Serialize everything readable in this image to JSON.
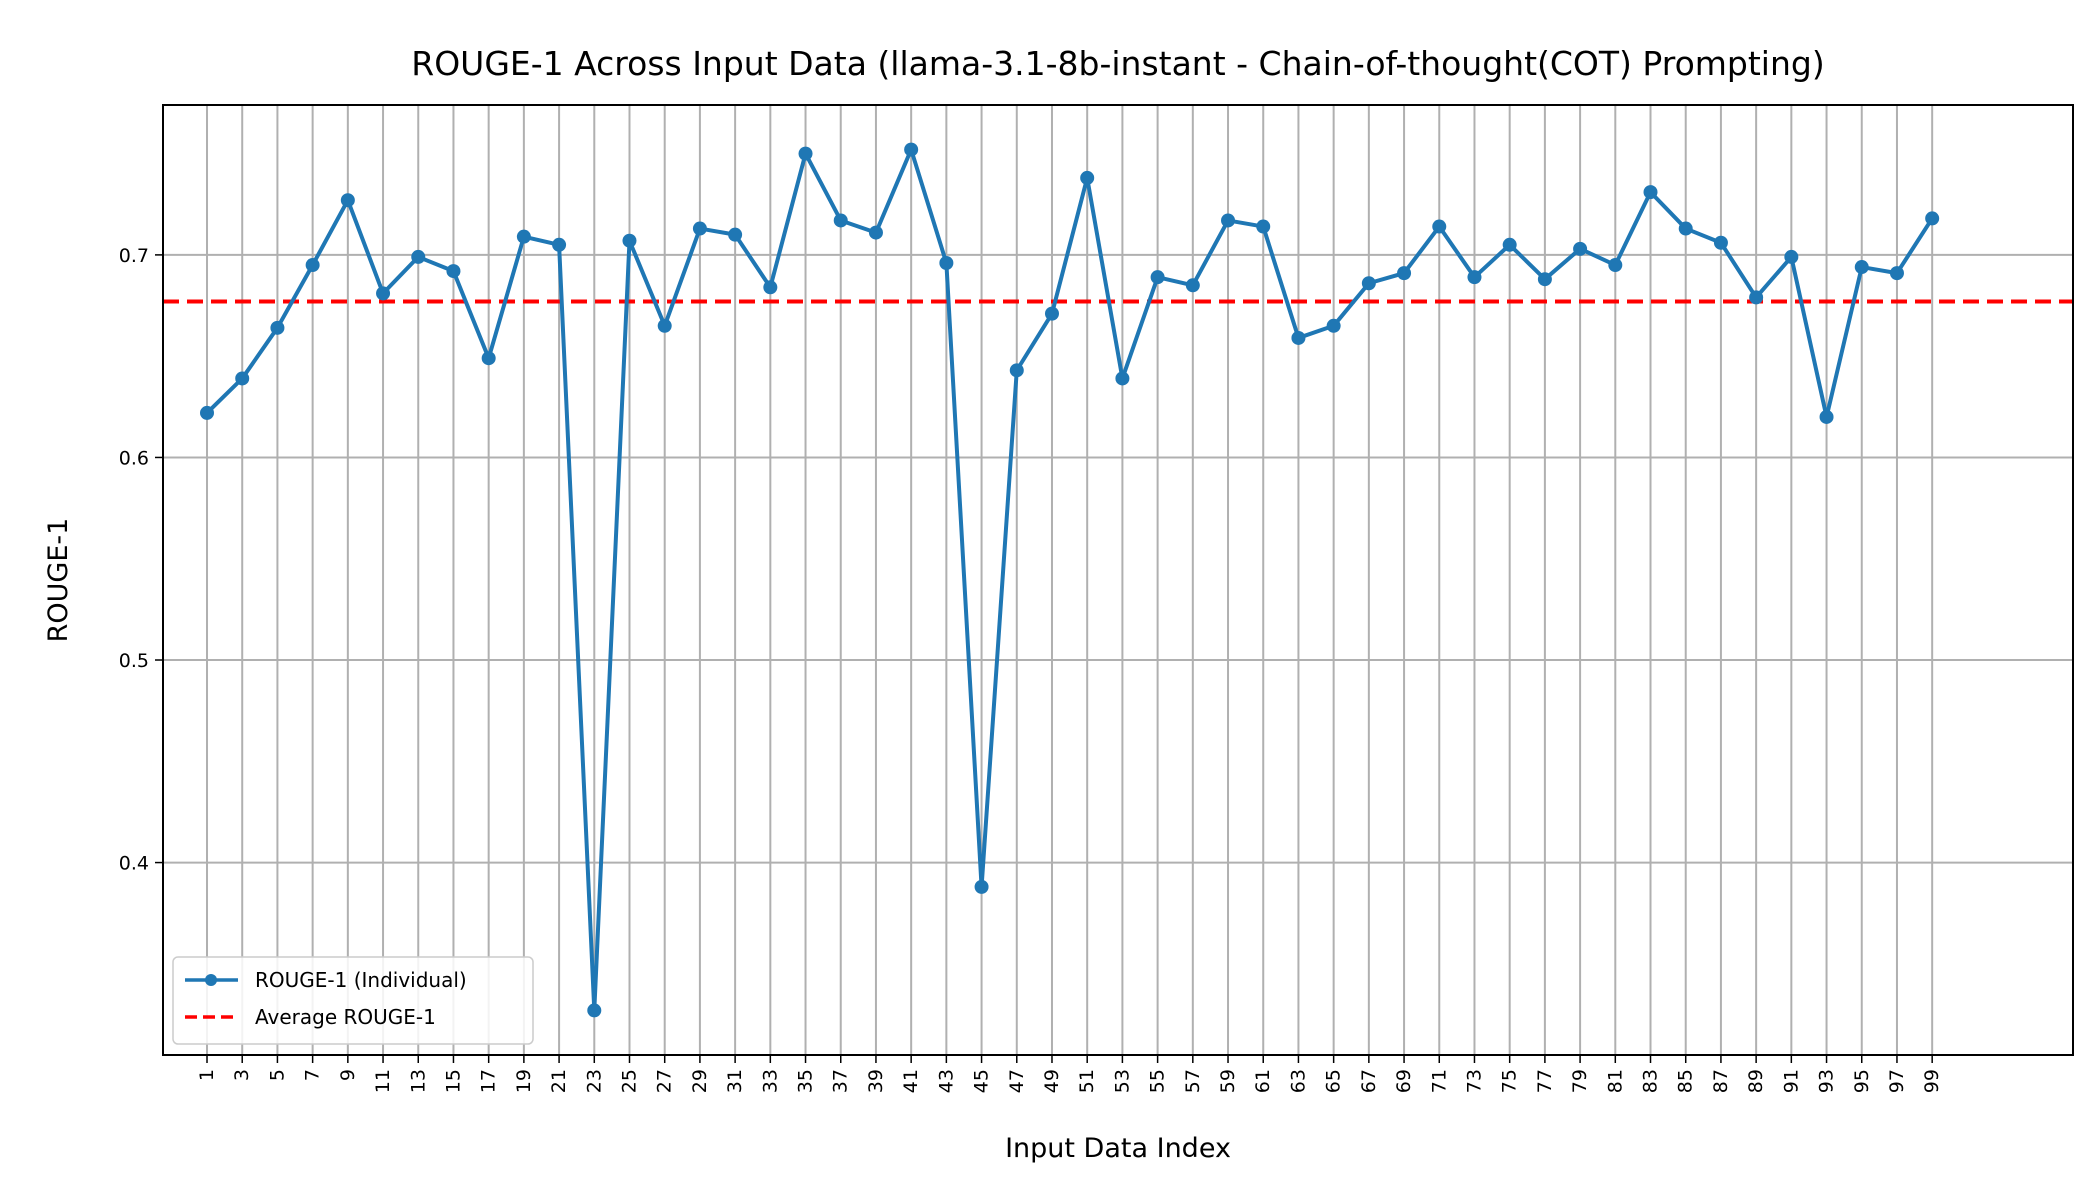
{
  "chart_data": {
    "type": "line",
    "title": "ROUGE-1 Across Input Data (llama-3.1-8b-instant - Chain-of-thought(COT) Prompting)",
    "xlabel": "Input Data Index",
    "ylabel": "ROUGE-1",
    "x": [
      1,
      3,
      5,
      7,
      9,
      11,
      13,
      15,
      17,
      19,
      21,
      23,
      25,
      27,
      29,
      31,
      33,
      35,
      37,
      39,
      41,
      43,
      45,
      47,
      49,
      51,
      53,
      55,
      57,
      59,
      61,
      63,
      65,
      67,
      69,
      71,
      73,
      75,
      77,
      79,
      81,
      83,
      85,
      87,
      89,
      91,
      93,
      95,
      97,
      99
    ],
    "xlim": [
      -1.5,
      107
    ],
    "ylim": [
      0.305,
      0.774
    ],
    "yticks": [
      0.4,
      0.5,
      0.6,
      0.7
    ],
    "ytick_labels": [
      "0.4",
      "0.5",
      "0.6",
      "0.7"
    ],
    "grid": true,
    "legend_position": "lower-left",
    "series": [
      {
        "name": "ROUGE-1 (Individual)",
        "color": "#1f77b4",
        "style": "solid-with-markers",
        "values": [
          0.622,
          0.639,
          0.664,
          0.695,
          0.727,
          0.681,
          0.699,
          0.692,
          0.649,
          0.709,
          0.705,
          0.327,
          0.707,
          0.665,
          0.713,
          0.71,
          0.684,
          0.75,
          0.717,
          0.711,
          0.752,
          0.696,
          0.388,
          0.643,
          0.671,
          0.738,
          0.639,
          0.689,
          0.685,
          0.717,
          0.714,
          0.659,
          0.665,
          0.686,
          0.691,
          0.714,
          0.689,
          0.705,
          0.688,
          0.703,
          0.695,
          0.731,
          0.713,
          0.706,
          0.679,
          0.699,
          0.62,
          0.694,
          0.691,
          0.718
        ]
      },
      {
        "name": "Average ROUGE-1",
        "color": "#ff0000",
        "style": "dashed",
        "value": 0.677
      }
    ]
  }
}
